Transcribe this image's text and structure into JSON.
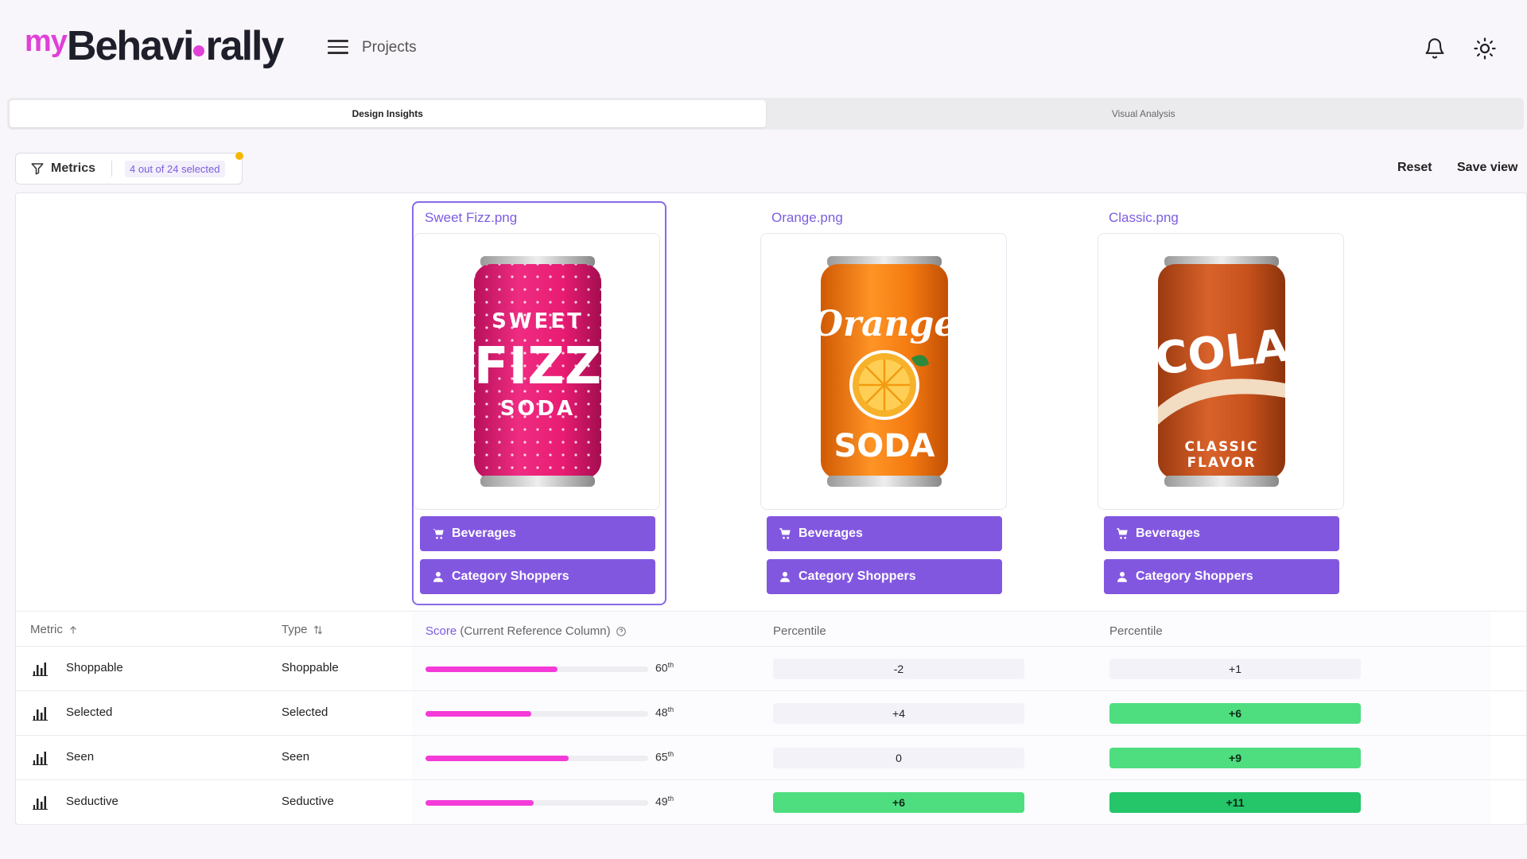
{
  "header": {
    "logo_prefix": "my",
    "logo_main_a": "Behavi",
    "logo_main_b": "rally",
    "projects_label": "Projects",
    "icons": {
      "menu": "hamburger-menu-icon",
      "bell": "bell-icon",
      "theme": "sun-icon"
    }
  },
  "tabs": [
    {
      "label": "Design Insights",
      "active": true
    },
    {
      "label": "Visual Analysis",
      "active": false
    }
  ],
  "filter": {
    "label": "Metrics",
    "count_text": "4 out of 24 selected",
    "reset_label": "Reset",
    "save_label": "Save view"
  },
  "designs": [
    {
      "name": "Sweet Fizz.png",
      "selected": true,
      "tags": [
        "Beverages",
        "Category Shoppers"
      ],
      "can_lines": [
        "SWEET",
        "FIZZ",
        "SODA"
      ],
      "can_color": "#e81c72"
    },
    {
      "name": "Orange.png",
      "selected": false,
      "tags": [
        "Beverages",
        "Category Shoppers"
      ],
      "can_lines": [
        "Orange",
        "SODA"
      ],
      "can_color": "#f47a10"
    },
    {
      "name": "Classic.png",
      "selected": false,
      "tags": [
        "Beverages",
        "Category Shoppers"
      ],
      "can_lines": [
        "COLA",
        "CLASSIC",
        "FLAVOR"
      ],
      "can_color": "#c8521c"
    }
  ],
  "table": {
    "headers": {
      "metric": "Metric",
      "type": "Type",
      "score_hl": "Score",
      "score_rest": " (Current Reference Column)",
      "percentile_1": "Percentile",
      "percentile_2": "Percentile"
    },
    "rows": [
      {
        "metric": "Shoppable",
        "type": "Shoppable",
        "score": 60,
        "pct": "60",
        "sup": "th",
        "d1": "-2",
        "d2": "+1"
      },
      {
        "metric": "Selected",
        "type": "Selected",
        "score": 48,
        "pct": "48",
        "sup": "th",
        "d1": "+4",
        "d2": "+6"
      },
      {
        "metric": "Seen",
        "type": "Seen",
        "score": 65,
        "pct": "65",
        "sup": "th",
        "d1": "0",
        "d2": "+9"
      },
      {
        "metric": "Seductive",
        "type": "Seductive",
        "score": 49,
        "pct": "49",
        "sup": "th",
        "d1": "+6",
        "d2": "+11"
      }
    ]
  },
  "colors": {
    "accent": "#8257e0",
    "brand_pink": "#e040d8",
    "score_bar": "#f43bd8",
    "positive": "#4ede7f",
    "strong_positive": "#25c56a"
  }
}
